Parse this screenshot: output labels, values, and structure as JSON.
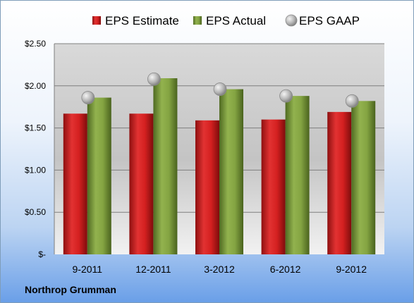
{
  "company": "Northrop Grumman",
  "colors": {
    "estimate": "#cc1f1f",
    "actual": "#7a9a3a",
    "gaap": "#a8a8a8"
  },
  "chart_data": {
    "type": "bar",
    "categories": [
      "9-2011",
      "12-2011",
      "3-2012",
      "6-2012",
      "9-2012"
    ],
    "series": [
      {
        "name": "EPS Estimate",
        "kind": "bar",
        "values": [
          1.67,
          1.67,
          1.59,
          1.6,
          1.69
        ]
      },
      {
        "name": "EPS Actual",
        "kind": "bar",
        "values": [
          1.86,
          2.09,
          1.96,
          1.88,
          1.82
        ]
      },
      {
        "name": "EPS GAAP",
        "kind": "marker",
        "values": [
          1.86,
          2.08,
          1.96,
          1.88,
          1.82
        ]
      }
    ],
    "ylim": [
      0,
      2.5
    ],
    "yticks": [
      0,
      0.5,
      1.0,
      1.5,
      2.0,
      2.5
    ],
    "ytick_labels": [
      "$-",
      "$0.50",
      "$1.00",
      "$1.50",
      "$2.00",
      "$2.50"
    ],
    "grid": true,
    "legend_position": "top"
  }
}
